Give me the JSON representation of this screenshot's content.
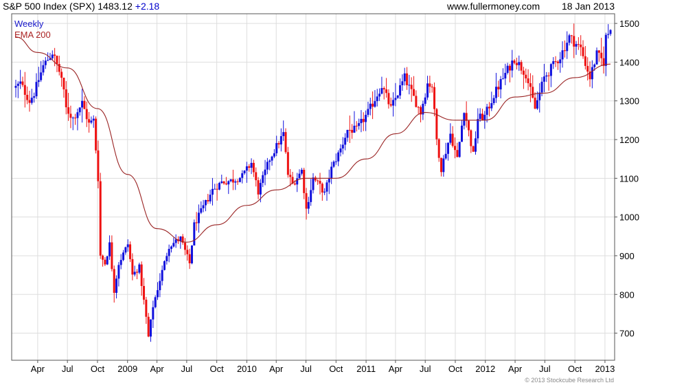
{
  "header": {
    "index_name": "S&P 500 Index (SPX)",
    "last": "1483.12",
    "change": "+2.18",
    "site": "www.fullermoney.com",
    "date": "18 Jan 2013"
  },
  "legend": {
    "series_label": "Weekly",
    "ema_label": "EMA 200"
  },
  "copyright": "© 2013 Stockcube Research Ltd",
  "colors": {
    "up": "#1010dd",
    "down": "#ee1111",
    "ema": "#992222",
    "grid": "#dddddd",
    "frame": "#555555"
  },
  "chart_data": {
    "type": "candlestick",
    "title": "S&P 500 Index (SPX)",
    "interval": "weekly",
    "y_axis_side": "right",
    "ylim": [
      630,
      1525
    ],
    "yticks": [
      700,
      800,
      900,
      1000,
      1100,
      1200,
      1300,
      1400,
      1500
    ],
    "x_range": [
      "2008-01-25",
      "2013-01-18"
    ],
    "x_ticks": [
      {
        "label": "Apr",
        "date": "2008-04-01"
      },
      {
        "label": "Jul",
        "date": "2008-07-01"
      },
      {
        "label": "Oct",
        "date": "2008-10-01"
      },
      {
        "label": "2009",
        "date": "2009-01-01"
      },
      {
        "label": "Apr",
        "date": "2009-04-01"
      },
      {
        "label": "Jul",
        "date": "2009-07-01"
      },
      {
        "label": "Oct",
        "date": "2009-10-01"
      },
      {
        "label": "2010",
        "date": "2010-01-01"
      },
      {
        "label": "Apr",
        "date": "2010-04-01"
      },
      {
        "label": "Jul",
        "date": "2010-07-01"
      },
      {
        "label": "Oct",
        "date": "2010-10-01"
      },
      {
        "label": "2011",
        "date": "2011-01-01"
      },
      {
        "label": "Apr",
        "date": "2011-04-01"
      },
      {
        "label": "Jul",
        "date": "2011-07-01"
      },
      {
        "label": "Oct",
        "date": "2011-10-01"
      },
      {
        "label": "2012",
        "date": "2012-01-01"
      },
      {
        "label": "Apr",
        "date": "2012-04-01"
      },
      {
        "label": "Jul",
        "date": "2012-07-01"
      },
      {
        "label": "Oct",
        "date": "2012-10-01"
      },
      {
        "label": "2013",
        "date": "2013-01-01"
      }
    ],
    "close_anchors": [
      [
        "2008-01-25",
        1335
      ],
      [
        "2008-02-08",
        1345
      ],
      [
        "2008-03-07",
        1300
      ],
      [
        "2008-03-21",
        1320
      ],
      [
        "2008-04-18",
        1390
      ],
      [
        "2008-05-16",
        1425
      ],
      [
        "2008-06-13",
        1360
      ],
      [
        "2008-06-27",
        1280
      ],
      [
        "2008-07-18",
        1255
      ],
      [
        "2008-08-15",
        1295
      ],
      [
        "2008-09-05",
        1240
      ],
      [
        "2008-09-19",
        1250
      ],
      [
        "2008-10-03",
        1100
      ],
      [
        "2008-10-10",
        900
      ],
      [
        "2008-10-24",
        880
      ],
      [
        "2008-11-07",
        930
      ],
      [
        "2008-11-21",
        810
      ],
      [
        "2008-12-05",
        880
      ],
      [
        "2009-01-02",
        930
      ],
      [
        "2009-01-16",
        850
      ],
      [
        "2009-02-06",
        870
      ],
      [
        "2009-02-27",
        740
      ],
      [
        "2009-03-06",
        690
      ],
      [
        "2009-03-20",
        770
      ],
      [
        "2009-04-17",
        860
      ],
      [
        "2009-05-08",
        925
      ],
      [
        "2009-06-12",
        945
      ],
      [
        "2009-07-10",
        880
      ],
      [
        "2009-07-24",
        980
      ],
      [
        "2009-08-21",
        1025
      ],
      [
        "2009-09-18",
        1070
      ],
      [
        "2009-10-16",
        1090
      ],
      [
        "2009-11-20",
        1095
      ],
      [
        "2009-12-18",
        1105
      ],
      [
        "2010-01-15",
        1140
      ],
      [
        "2010-02-05",
        1065
      ],
      [
        "2010-03-12",
        1150
      ],
      [
        "2010-04-23",
        1215
      ],
      [
        "2010-05-07",
        1110
      ],
      [
        "2010-05-21",
        1085
      ],
      [
        "2010-06-18",
        1120
      ],
      [
        "2010-07-02",
        1020
      ],
      [
        "2010-07-23",
        1100
      ],
      [
        "2010-08-13",
        1080
      ],
      [
        "2010-08-27",
        1060
      ],
      [
        "2010-09-17",
        1125
      ],
      [
        "2010-10-15",
        1175
      ],
      [
        "2010-11-05",
        1225
      ],
      [
        "2010-12-03",
        1225
      ],
      [
        "2011-01-07",
        1270
      ],
      [
        "2011-02-18",
        1340
      ],
      [
        "2011-03-18",
        1280
      ],
      [
        "2011-04-29",
        1360
      ],
      [
        "2011-06-17",
        1270
      ],
      [
        "2011-07-08",
        1345
      ],
      [
        "2011-07-22",
        1340
      ],
      [
        "2011-08-05",
        1200
      ],
      [
        "2011-08-19",
        1125
      ],
      [
        "2011-09-16",
        1215
      ],
      [
        "2011-10-07",
        1150
      ],
      [
        "2011-10-28",
        1280
      ],
      [
        "2011-11-25",
        1160
      ],
      [
        "2011-12-09",
        1255
      ],
      [
        "2011-12-30",
        1260
      ],
      [
        "2012-01-27",
        1315
      ],
      [
        "2012-03-02",
        1370
      ],
      [
        "2012-03-30",
        1410
      ],
      [
        "2012-05-04",
        1370
      ],
      [
        "2012-06-01",
        1280
      ],
      [
        "2012-06-29",
        1360
      ],
      [
        "2012-08-17",
        1415
      ],
      [
        "2012-09-14",
        1465
      ],
      [
        "2012-10-19",
        1435
      ],
      [
        "2012-11-16",
        1360
      ],
      [
        "2012-12-07",
        1420
      ],
      [
        "2012-12-28",
        1400
      ],
      [
        "2013-01-04",
        1465
      ],
      [
        "2013-01-18",
        1483
      ]
    ],
    "ema_200_points": [
      [
        "2008-01-25",
        1465
      ],
      [
        "2008-04-01",
        1425
      ],
      [
        "2008-07-01",
        1385
      ],
      [
        "2008-10-01",
        1280
      ],
      [
        "2009-01-01",
        1110
      ],
      [
        "2009-04-01",
        970
      ],
      [
        "2009-07-01",
        935
      ],
      [
        "2009-10-01",
        980
      ],
      [
        "2010-01-01",
        1030
      ],
      [
        "2010-04-01",
        1070
      ],
      [
        "2010-07-01",
        1100
      ],
      [
        "2010-10-01",
        1100
      ],
      [
        "2011-01-01",
        1150
      ],
      [
        "2011-04-01",
        1215
      ],
      [
        "2011-07-01",
        1270
      ],
      [
        "2011-10-01",
        1250
      ],
      [
        "2012-01-01",
        1250
      ],
      [
        "2012-04-01",
        1310
      ],
      [
        "2012-07-01",
        1320
      ],
      [
        "2012-10-01",
        1360
      ],
      [
        "2013-01-18",
        1395
      ]
    ]
  }
}
